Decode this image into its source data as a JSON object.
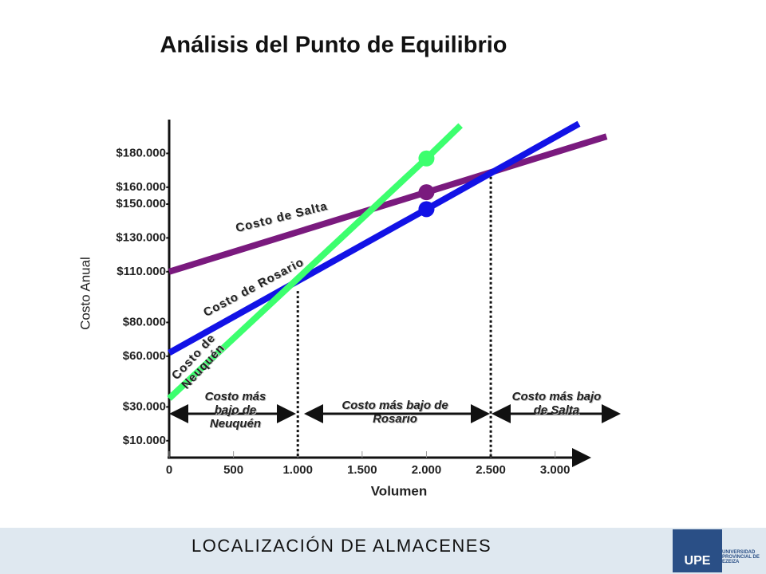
{
  "title": "Análisis del Punto de Equilibrio",
  "chart_data": {
    "type": "line",
    "x_label": "Volumen",
    "y_label": "Costo Anual",
    "xlim": [
      0,
      3250
    ],
    "ylim": [
      0,
      200000
    ],
    "xticks": [
      0,
      500,
      {
        "value": 1000,
        "label": "1.000"
      },
      {
        "value": 1500,
        "label": "1.500"
      },
      {
        "value": 2000,
        "label": "2.000"
      },
      {
        "value": 2500,
        "label": "2.500"
      },
      {
        "value": 3000,
        "label": "3.000"
      }
    ],
    "yticks": [
      {
        "value": 10000,
        "label": "$10.000"
      },
      {
        "value": 30000,
        "label": "$30.000"
      },
      {
        "value": 60000,
        "label": "$60.000"
      },
      {
        "value": 80000,
        "label": "$80.000"
      },
      {
        "value": 110000,
        "label": "$110.000"
      },
      {
        "value": 130000,
        "label": "$130.000"
      },
      {
        "value": 150000,
        "label": "$150.000"
      },
      {
        "value": 160000,
        "label": "$160.000"
      },
      {
        "value": 180000,
        "label": "$180.000"
      }
    ],
    "series": [
      {
        "name": "Costo de Salta",
        "color": "#7a1a7e",
        "x": [
          0,
          2000,
          3400
        ],
        "values": [
          110000,
          157000,
          190000
        ]
      },
      {
        "name": "Costo de Rosario",
        "color": "#1212e6",
        "x": [
          0,
          2000,
          3185
        ],
        "values": [
          62000,
          147000,
          197500
        ]
      },
      {
        "name": "Costo de Neuquén",
        "color": "#3cff6e",
        "x": [
          0,
          2000,
          2265
        ],
        "values": [
          35000,
          177000,
          196500
        ]
      }
    ],
    "crossovers": [
      {
        "x": 1000,
        "y": 98500
      },
      {
        "x": 2500,
        "y": 169000
      }
    ],
    "regions": [
      "Costo más bajo de Neuquén",
      "Costo más bajo de Rosario",
      "Costo más bajo de Salta"
    ]
  },
  "footer": {
    "text": "LOCALIZACIÓN DE ALMACENES",
    "logo": "UPE",
    "institution": "UNIVERSIDAD PROVINCIAL DE EZEIZA"
  }
}
